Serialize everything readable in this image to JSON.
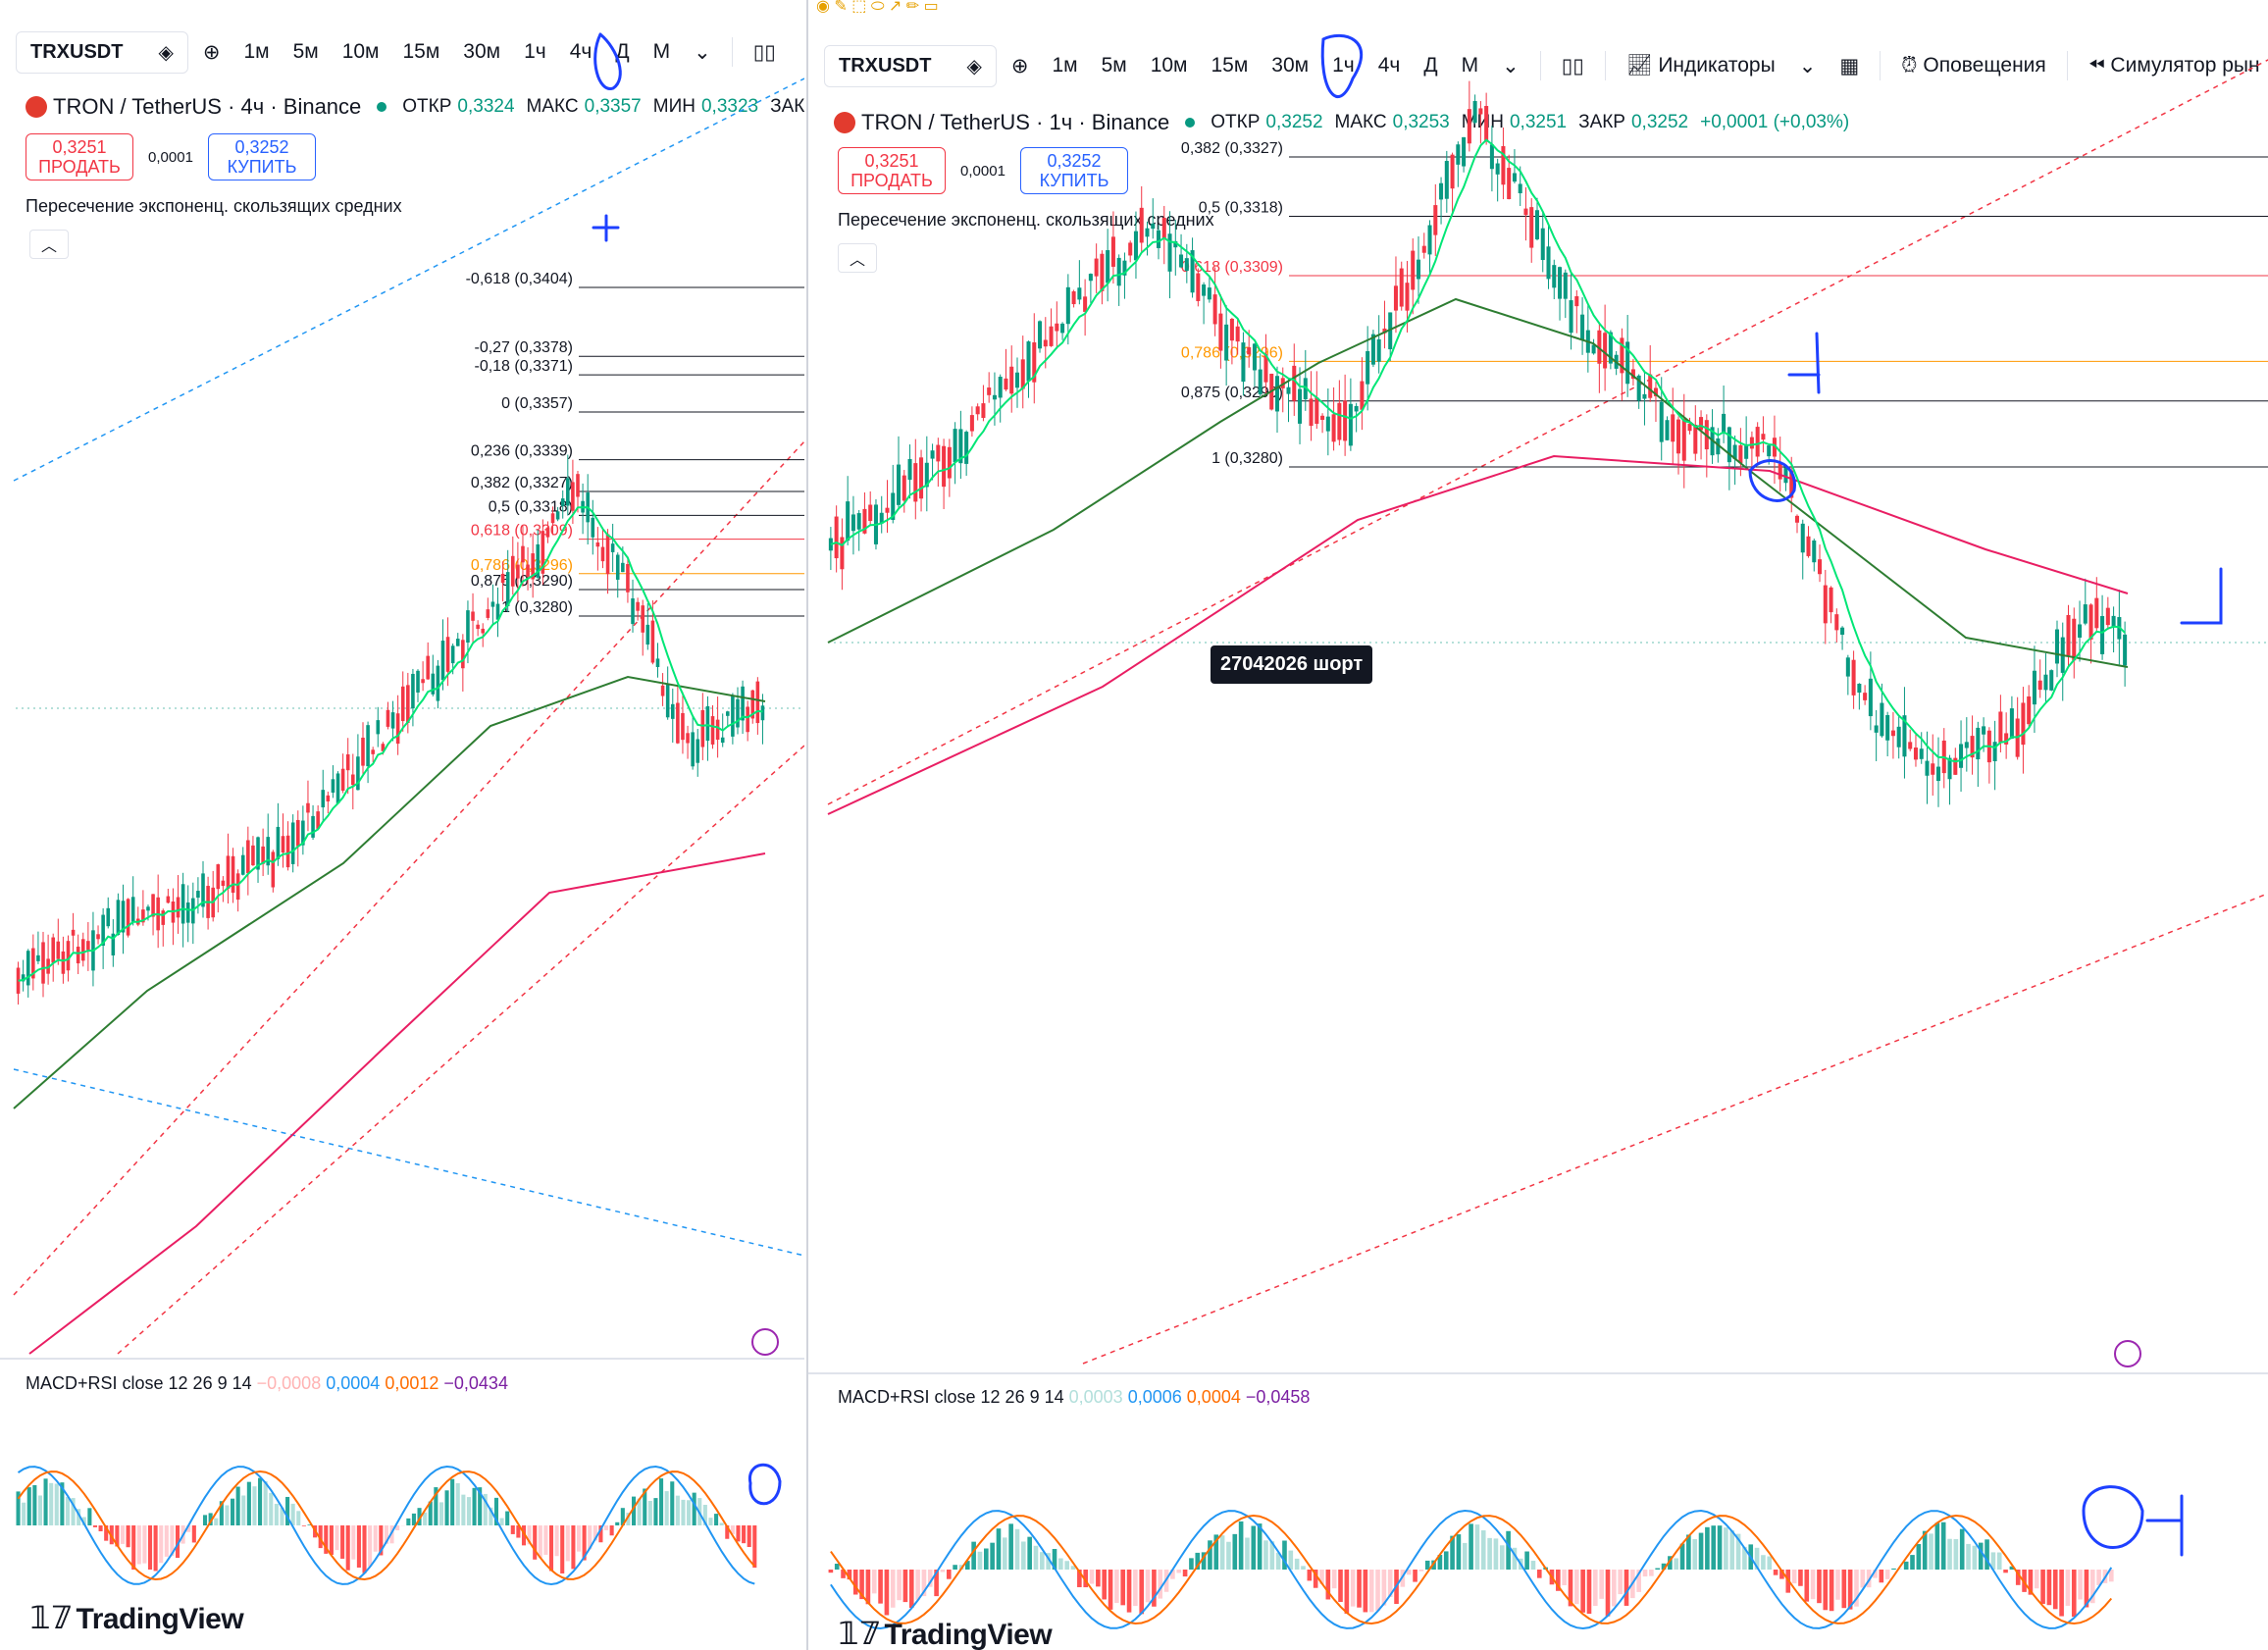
{
  "colors": {
    "bull": "#089981",
    "bear": "#f23645",
    "ema_fast": "#00e676",
    "ema_mid": "#2e7d32",
    "ema_slow": "#e91e63",
    "macd": "#2196f3",
    "signal": "#ff6d00",
    "annotation": "#1e40ff"
  },
  "left": {
    "toolbar": {
      "symbol": "TRXUSDT",
      "intervals": [
        "1м",
        "5м",
        "10м",
        "15м",
        "30м",
        "1ч",
        "4ч",
        "Д",
        "М"
      ]
    },
    "legend": {
      "title": "TRON / TetherUS · 4ч · Binance",
      "open_label": "ОТКР",
      "open": "0,3324",
      "high_label": "МАКС",
      "high": "0,3357",
      "low_label": "МИН",
      "low": "0,3323",
      "close_label": "ЗАК"
    },
    "trade": {
      "sell_price": "0,3251",
      "sell_label": "ПРОДАТЬ",
      "spread": "0,0001",
      "buy_price": "0,3252",
      "buy_label": "КУПИТЬ"
    },
    "indicator": "Пересечение экспоненц. скользящих средних",
    "macd_legend": {
      "name": "MACD+RSI close 12 26 9 14",
      "v1": "−0,0008",
      "v2": "0,0004",
      "v3": "0,0012",
      "v4": "−0,0434"
    },
    "brand": "TradingView"
  },
  "right": {
    "toolbar": {
      "symbol": "TRXUSDT",
      "intervals": [
        "1м",
        "5м",
        "10м",
        "15м",
        "30м",
        "1ч",
        "4ч",
        "Д",
        "М"
      ],
      "indicators": "Индикаторы",
      "alerts": "Оповещения",
      "replay": "Симулятор рын"
    },
    "legend": {
      "title": "TRON / TetherUS · 1ч · Binance",
      "open_label": "ОТКР",
      "open": "0,3252",
      "high_label": "МАКС",
      "high": "0,3253",
      "low_label": "МИН",
      "low": "0,3251",
      "close_label": "ЗАКР",
      "close": "0,3252",
      "change": "+0,0001 (+0,03%)"
    },
    "trade": {
      "sell_price": "0,3251",
      "sell_label": "ПРОДАТЬ",
      "spread": "0,0001",
      "buy_price": "0,3252",
      "buy_label": "КУПИТЬ"
    },
    "indicator": "Пересечение экспоненц. скользящих средних",
    "tooltip": "27042026 шорт",
    "macd_legend": {
      "name": "MACD+RSI close 12 26 9 14",
      "v1": "0,0003",
      "v2": "0,0006",
      "v3": "0,0004",
      "v4": "−0,0458"
    },
    "brand": "TradingView"
  },
  "chart_data": [
    {
      "type": "candlestick",
      "panel": "left",
      "symbol": "TRXUSDT",
      "interval": "4ч",
      "fib_levels": [
        {
          "label": "-0,618 (0,3404)",
          "ratio": -0.618,
          "price": 0.3404
        },
        {
          "label": "-0,27 (0,3378)",
          "ratio": -0.27,
          "price": 0.3378
        },
        {
          "label": "-0,18 (0,3371)",
          "ratio": -0.18,
          "price": 0.3371
        },
        {
          "label": "0 (0,3357)",
          "ratio": 0,
          "price": 0.3357
        },
        {
          "label": "0,236 (0,3339)",
          "ratio": 0.236,
          "price": 0.3339
        },
        {
          "label": "0,382 (0,3327)",
          "ratio": 0.382,
          "price": 0.3327
        },
        {
          "label": "0,5 (0,3318)",
          "ratio": 0.5,
          "price": 0.3318
        },
        {
          "label": "0,618 (0,3309)",
          "ratio": 0.618,
          "price": 0.3309
        },
        {
          "label": "0,786 (0,3296)",
          "ratio": 0.786,
          "price": 0.3296
        },
        {
          "label": "0,875 (0,3290)",
          "ratio": 0.875,
          "price": 0.329
        },
        {
          "label": "1 (0,3280)",
          "ratio": 1,
          "price": 0.328
        }
      ],
      "last_price": 0.3251
    },
    {
      "type": "candlestick",
      "panel": "right",
      "symbol": "TRXUSDT",
      "interval": "1ч",
      "fib_levels": [
        {
          "label": "0,382 (0,3327)",
          "ratio": 0.382,
          "price": 0.3327
        },
        {
          "label": "0,5 (0,3318)",
          "ratio": 0.5,
          "price": 0.3318
        },
        {
          "label": "0,618 (0,3309)",
          "ratio": 0.618,
          "price": 0.3309
        },
        {
          "label": "0,786 (0,3296)",
          "ratio": 0.786,
          "price": 0.3296
        },
        {
          "label": "0,875 (0,3290)",
          "ratio": 0.875,
          "price": 0.329
        },
        {
          "label": "1 (0,3280)",
          "ratio": 1,
          "price": 0.328
        }
      ],
      "last_price": 0.3252
    }
  ]
}
